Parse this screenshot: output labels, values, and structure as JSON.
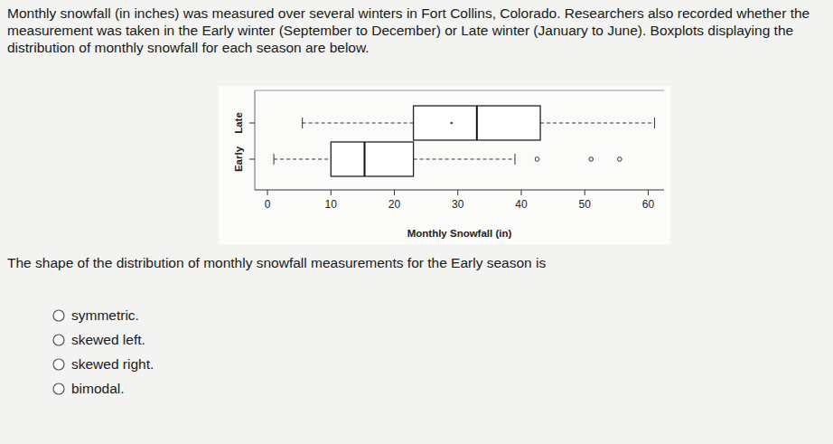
{
  "header": {
    "lines": [
      "Monthly snowfall (in inches) was measured over several winters in Fort Collins, Colorado. Researchers also recorded whether the",
      "measurement was taken in the Early winter (September to December) or Late winter (January to June). Boxplots displaying the",
      "distribution of monthly snowfall for each season are below."
    ]
  },
  "chart_data": {
    "type": "boxplot",
    "orientation": "horizontal",
    "x_label": "Monthly Snowfall (in)",
    "xlim": [
      -2,
      62.5
    ],
    "xticks": [
      0,
      10,
      20,
      30,
      40,
      50,
      60
    ],
    "boxes": [
      {
        "name": "Late",
        "min": 5.5,
        "q1": 23,
        "median": 33,
        "q3": 43,
        "max": 61,
        "mean": 29,
        "outliers": []
      },
      {
        "name": "Early",
        "min": 1,
        "q1": 10,
        "median": 15.3,
        "q3": 23,
        "max": 39,
        "outliers": [
          42.5,
          51,
          55.5
        ]
      }
    ]
  },
  "question": {
    "prompt": "The shape of the distribution of monthly snowfall measurements for the Early season is",
    "options": [
      "symmetric.",
      "skewed left.",
      "skewed right.",
      "bimodal."
    ]
  }
}
